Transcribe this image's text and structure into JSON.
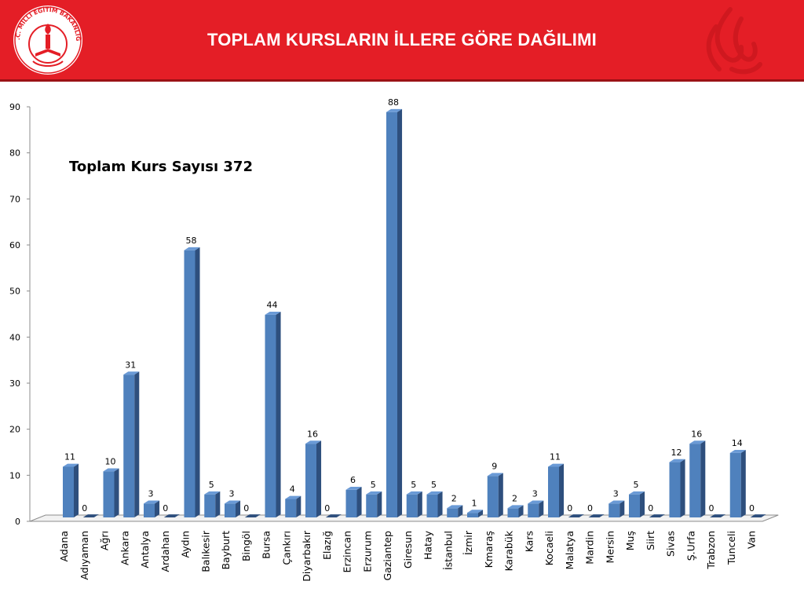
{
  "header": {
    "title": "TOPLAM KURSLARIN İLLERE GÖRE DAĞILIMI",
    "logo_text": "T.C. MİLLİ EĞİTİM BAKANLIĞI"
  },
  "colors": {
    "header_bg": "#e41e26",
    "bar_front": "#4f81bd",
    "bar_side": "#2e4f7d",
    "bar_top": "#6a9ad6"
  },
  "chart_data": {
    "type": "bar",
    "title": "Toplam  Kurs Sayısı 372",
    "ylim": [
      0,
      90
    ],
    "yticks": [
      0,
      10,
      20,
      30,
      40,
      50,
      60,
      70,
      80,
      90
    ],
    "grid": false,
    "legend": "none",
    "categories": [
      "Adana",
      "Adıyaman",
      "Ağrı",
      "Ankara",
      "Antalya",
      "Ardahan",
      "Aydın",
      "Balıkesir",
      "Bayburt",
      "Bingöl",
      "Bursa",
      "Çankırı",
      "Diyarbakır",
      "Elazığ",
      "Erzincan",
      "Erzurum",
      "Gaziantep",
      "Giresun",
      "Hatay",
      "İstanbul",
      "İzmir",
      "Kmaraş",
      "Karabük",
      "Kars",
      "Kocaeli",
      "Malatya",
      "Mardin",
      "Mersin",
      "Muş",
      "Siirt",
      "Sivas",
      "Ş.Urfa",
      "Trabzon",
      "Tunceli",
      "Van"
    ],
    "values": [
      11,
      0,
      10,
      31,
      3,
      0,
      58,
      5,
      3,
      0,
      44,
      4,
      16,
      0,
      6,
      5,
      88,
      5,
      5,
      2,
      1,
      9,
      2,
      3,
      11,
      0,
      0,
      3,
      5,
      0,
      12,
      16,
      0,
      14,
      0
    ]
  }
}
